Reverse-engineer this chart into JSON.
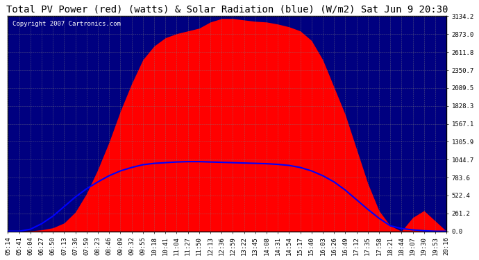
{
  "title": "Total PV Power (red) (watts) & Solar Radiation (blue) (W/m2) Sat Jun 9 20:30",
  "copyright": "Copyright 2007 Cartronics.com",
  "fig_bg_color": "#ffffff",
  "plot_bg_color": "#000080",
  "grid_color": "#808080",
  "yticks": [
    0.0,
    261.2,
    522.4,
    783.6,
    1044.7,
    1305.9,
    1567.1,
    1828.3,
    2089.5,
    2350.7,
    2611.8,
    2873.0,
    3134.2
  ],
  "ytick_labels": [
    "0.0",
    "261.2",
    "522.4",
    "783.6",
    "1044.7",
    "1305.9",
    "1567.1",
    "1828.3",
    "2089.5",
    "2350.7",
    "2611.8",
    "2873.0",
    "3134.2"
  ],
  "ymax": 3134.2,
  "xtick_labels": [
    "05:14",
    "05:41",
    "06:04",
    "06:27",
    "06:50",
    "07:13",
    "07:36",
    "07:59",
    "08:23",
    "08:46",
    "09:09",
    "09:32",
    "09:55",
    "10:18",
    "10:41",
    "11:04",
    "11:27",
    "11:50",
    "12:13",
    "12:36",
    "12:59",
    "13:22",
    "13:45",
    "14:08",
    "14:31",
    "14:54",
    "15:17",
    "15:40",
    "16:03",
    "16:26",
    "16:49",
    "17:12",
    "17:35",
    "17:58",
    "18:21",
    "18:44",
    "19:07",
    "19:30",
    "19:53",
    "20:16"
  ],
  "pv_color": "#FF0000",
  "solar_color": "#0000FF",
  "pv_data_y": [
    0,
    0,
    5,
    20,
    50,
    120,
    280,
    550,
    900,
    1300,
    1750,
    2150,
    2500,
    2700,
    2820,
    2880,
    2920,
    2960,
    3050,
    3100,
    3100,
    3080,
    3060,
    3050,
    3020,
    2980,
    2920,
    2780,
    2500,
    2100,
    1700,
    1200,
    700,
    300,
    80,
    0,
    200,
    300,
    150,
    0
  ],
  "solar_data_y": [
    0,
    0,
    30,
    110,
    220,
    360,
    500,
    620,
    720,
    810,
    880,
    930,
    970,
    990,
    1000,
    1010,
    1015,
    1015,
    1010,
    1005,
    1000,
    995,
    990,
    985,
    975,
    960,
    930,
    880,
    810,
    720,
    600,
    460,
    320,
    190,
    80,
    40,
    20,
    8,
    0,
    0
  ],
  "solar_display_scale": 1.0,
  "title_fontsize": 10,
  "tick_fontsize": 6.5,
  "copyright_fontsize": 6.5
}
